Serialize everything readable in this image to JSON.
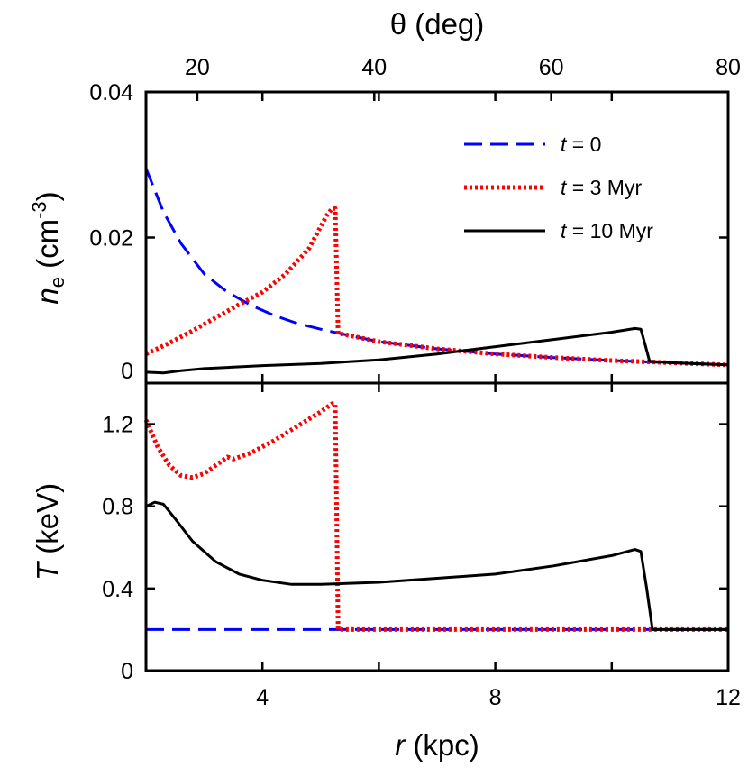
{
  "chart_data": [
    {
      "type": "line",
      "panel": "top",
      "xlabel_top": "θ (deg)",
      "xticks_top": [
        20,
        40,
        60,
        80
      ],
      "ylabel_main": "n",
      "ylabel_sub": "e",
      "ylabel_unit": " (cm",
      "ylabel_sup": "-3",
      "ylabel_close": ")",
      "xlim": [
        2,
        12
      ],
      "ylim": [
        0,
        0.04
      ],
      "yticks": [
        0,
        0.02,
        0.04
      ],
      "ytick_labels": [
        "0",
        "0.02",
        "0.04"
      ],
      "legend_position": "top-right",
      "series": [
        {
          "name_italic": "t",
          "name_rest": " = 0",
          "style": "dashed",
          "color": "#0000ff",
          "x": [
            2.0,
            2.3,
            2.6,
            3.0,
            3.4,
            3.8,
            4.2,
            4.6,
            5.0,
            5.4,
            6.0,
            7.0,
            8.0,
            9.0,
            10.0,
            11.0,
            12.0
          ],
          "y": [
            0.0295,
            0.0235,
            0.0192,
            0.015,
            0.0125,
            0.0107,
            0.0093,
            0.0082,
            0.0074,
            0.0067,
            0.0057,
            0.0047,
            0.004,
            0.0035,
            0.0031,
            0.0028,
            0.0025
          ]
        },
        {
          "name_italic": "t",
          "name_rest": " = 3 Myr",
          "style": "dotted",
          "color": "#ff0000",
          "x": [
            2.0,
            2.4,
            2.8,
            3.2,
            3.6,
            4.0,
            4.4,
            4.8,
            5.1,
            5.2,
            5.25,
            5.3,
            5.4,
            6.0,
            7.0,
            8.0,
            9.0,
            10.0,
            11.0,
            12.0
          ],
          "y": [
            0.004,
            0.0055,
            0.0072,
            0.009,
            0.0108,
            0.0125,
            0.015,
            0.0185,
            0.023,
            0.024,
            0.024,
            0.0068,
            0.0067,
            0.0057,
            0.0047,
            0.004,
            0.0035,
            0.0031,
            0.0028,
            0.0025
          ]
        },
        {
          "name_italic": "t",
          "name_rest": " = 10 Myr",
          "style": "solid",
          "color": "#000000",
          "x": [
            2.0,
            2.3,
            2.6,
            3.0,
            4.0,
            5.0,
            6.0,
            7.0,
            8.0,
            9.0,
            10.0,
            10.4,
            10.5,
            10.55,
            10.65,
            11.0,
            12.0
          ],
          "y": [
            0.0015,
            0.0014,
            0.0017,
            0.002,
            0.0024,
            0.0027,
            0.0032,
            0.004,
            0.005,
            0.006,
            0.007,
            0.0075,
            0.0074,
            0.006,
            0.003,
            0.0028,
            0.0025
          ]
        }
      ]
    },
    {
      "type": "line",
      "panel": "bottom",
      "xlabel_italic": "r",
      "xlabel_rest": " (kpc)",
      "ylabel_italic": "T",
      "ylabel_rest": " (keV)",
      "xlim": [
        2,
        12
      ],
      "xticks": [
        4,
        8,
        12
      ],
      "ylim": [
        0,
        1.4
      ],
      "yticks": [
        0,
        0.4,
        0.8,
        1.2
      ],
      "ytick_labels": [
        "0",
        "0.4",
        "0.8",
        "1.2"
      ],
      "series": [
        {
          "style": "dashed",
          "color": "#0000ff",
          "x": [
            2.0,
            12.0
          ],
          "y": [
            0.2,
            0.2
          ]
        },
        {
          "style": "dotted",
          "color": "#ff0000",
          "x": [
            2.0,
            2.2,
            2.4,
            2.6,
            2.8,
            3.0,
            3.3,
            3.4,
            3.5,
            3.8,
            4.2,
            4.6,
            5.0,
            5.2,
            5.25,
            5.3,
            6.0,
            8.0,
            10.0,
            12.0
          ],
          "y": [
            1.22,
            1.09,
            1.0,
            0.95,
            0.94,
            0.96,
            1.02,
            1.04,
            1.03,
            1.06,
            1.12,
            1.19,
            1.26,
            1.3,
            1.3,
            0.2,
            0.2,
            0.2,
            0.2,
            0.2
          ]
        },
        {
          "style": "solid",
          "color": "#000000",
          "x": [
            2.0,
            2.15,
            2.3,
            2.5,
            2.8,
            3.2,
            3.6,
            4.0,
            4.5,
            5.0,
            6.0,
            7.0,
            8.0,
            9.0,
            10.0,
            10.4,
            10.5,
            10.6,
            10.7,
            12.0
          ],
          "y": [
            0.8,
            0.82,
            0.81,
            0.74,
            0.63,
            0.53,
            0.47,
            0.44,
            0.42,
            0.42,
            0.43,
            0.45,
            0.47,
            0.51,
            0.56,
            0.59,
            0.58,
            0.4,
            0.2,
            0.2
          ]
        }
      ]
    }
  ]
}
